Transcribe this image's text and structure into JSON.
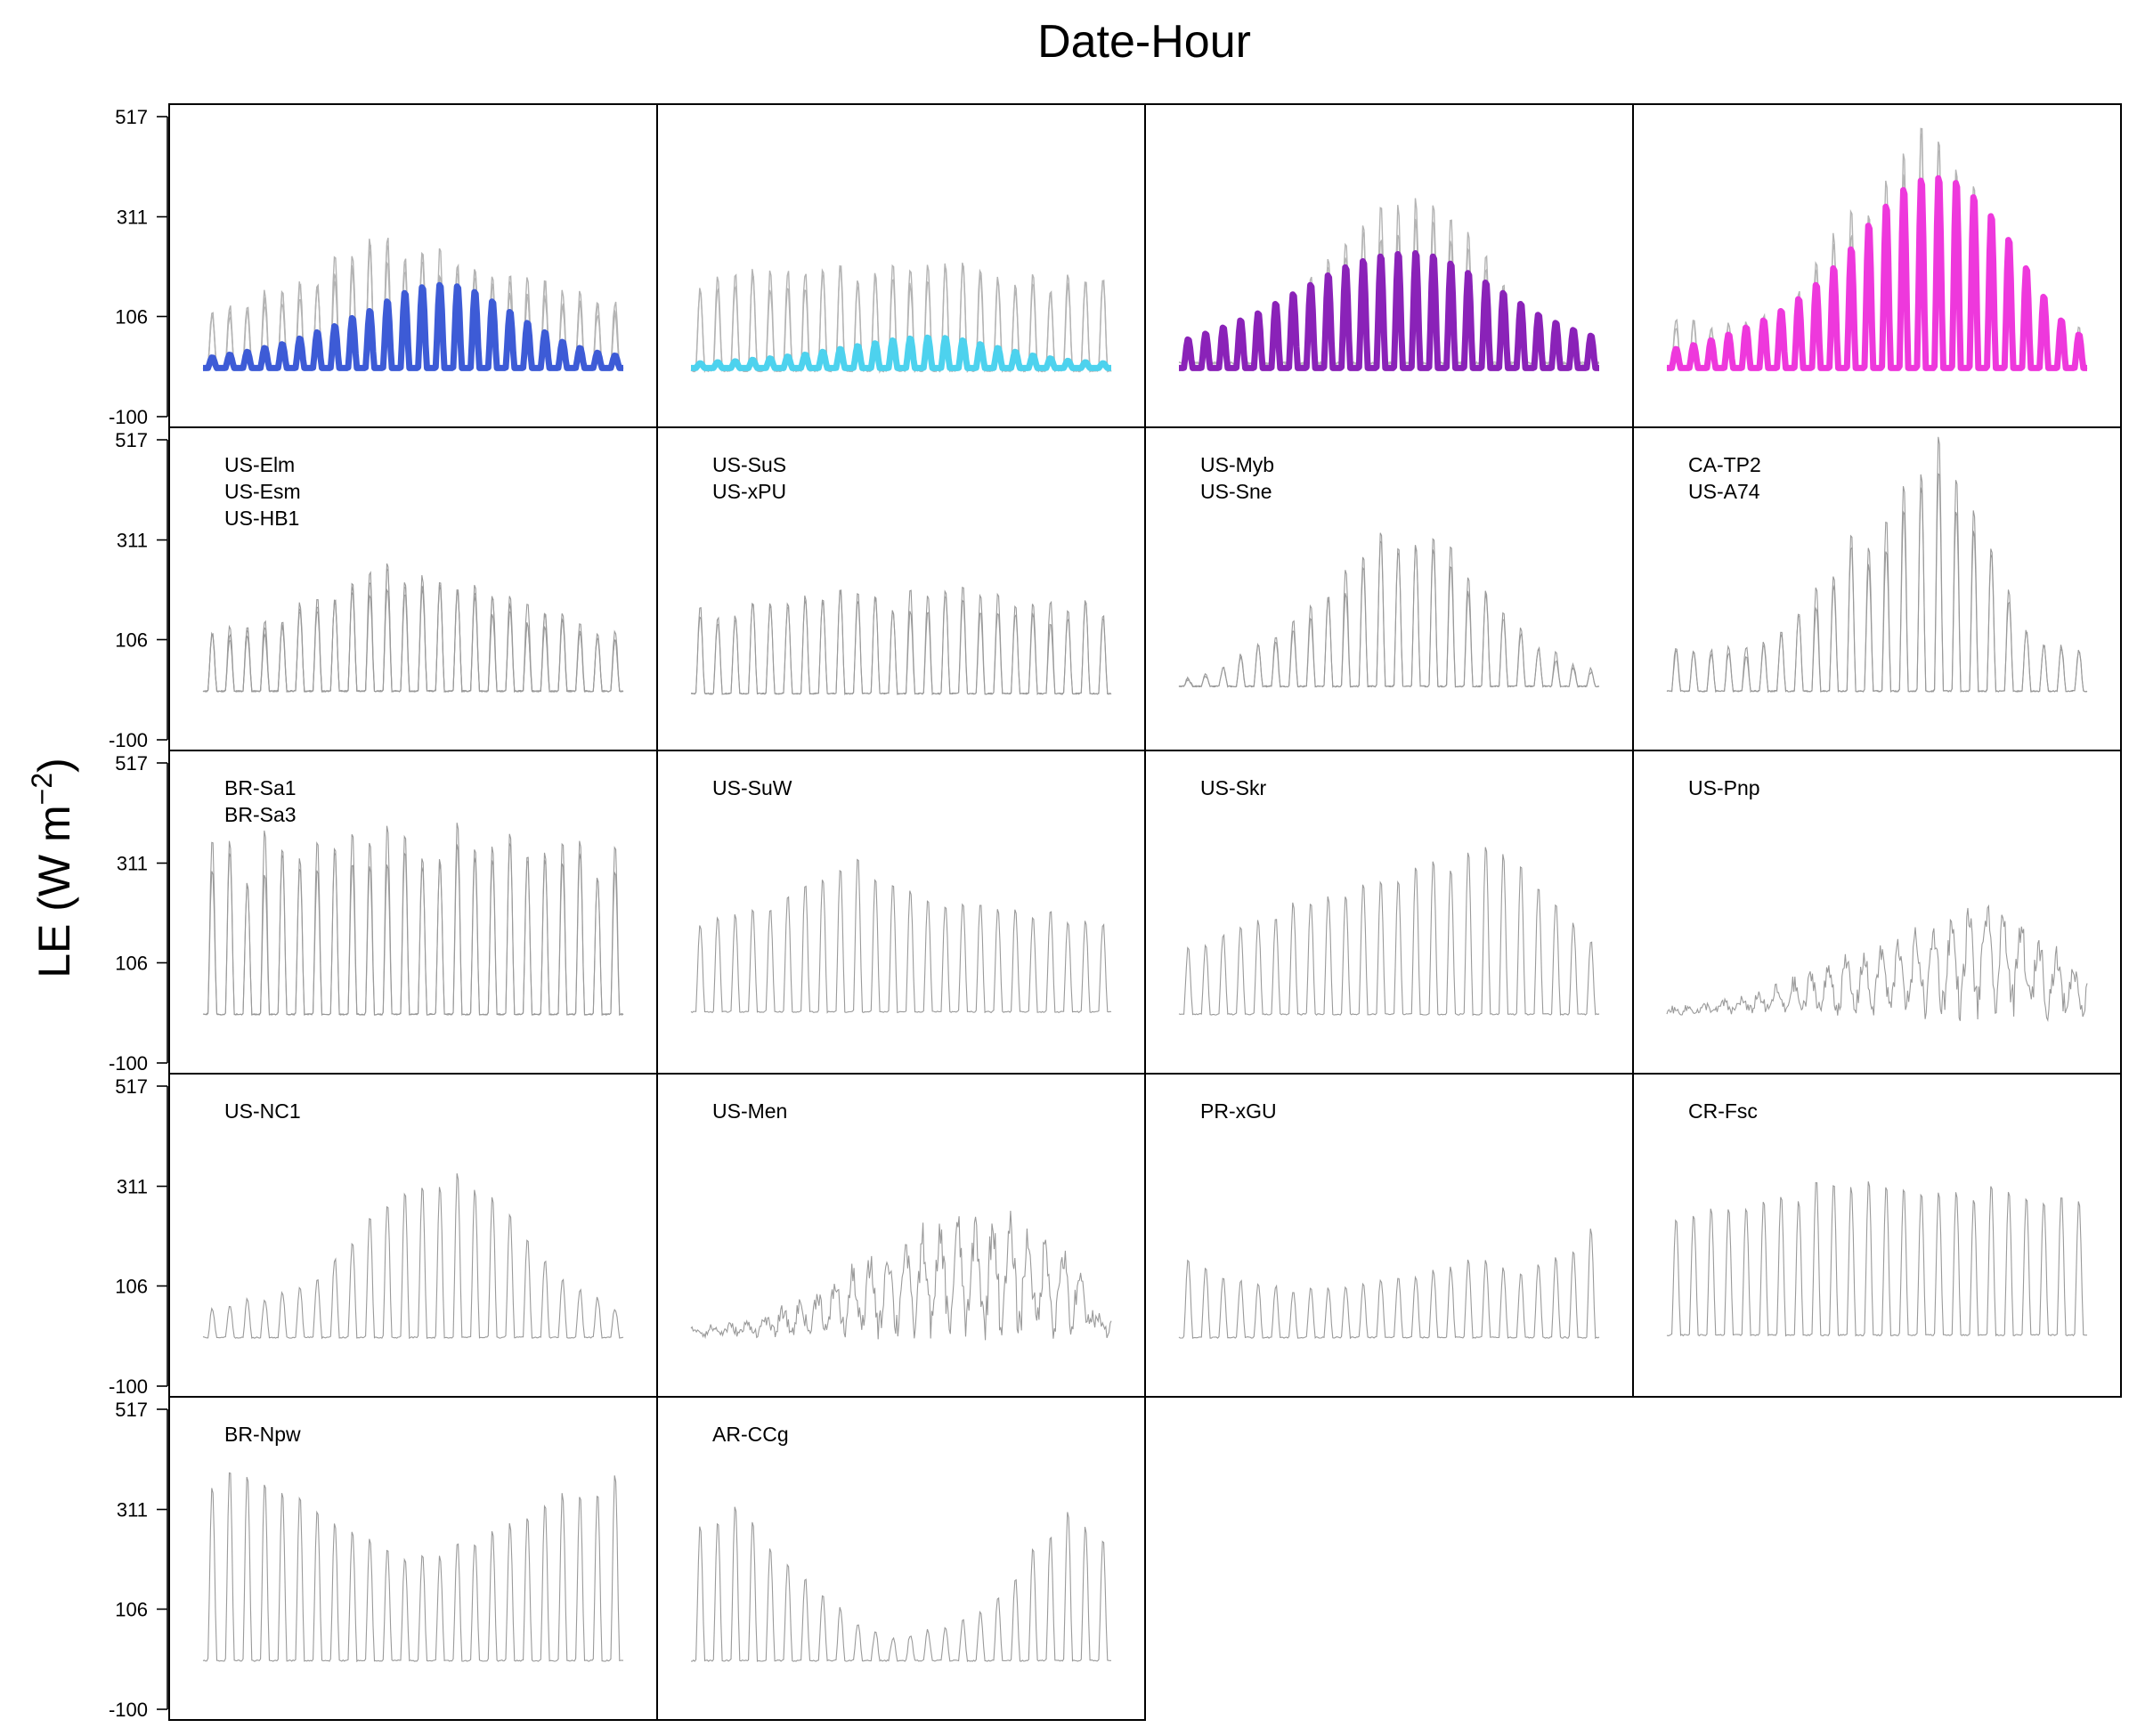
{
  "chart_data": {
    "type": "line",
    "title": "Date-Hour",
    "xlabel": "",
    "ylabel": "LE (W m",
    "ylabel_unit_exponent": "−2",
    "ylabel_close": ")",
    "ylim": [
      -100,
      517
    ],
    "yticks": [
      "517",
      "311",
      "106",
      "-100"
    ],
    "grid": false,
    "layout": {
      "rows": 5,
      "cols": 4
    },
    "x_days": 24,
    "summary_panels": [
      {
        "color": "#3d5bd6",
        "site_panel": 0,
        "peaks": [
          22,
          28,
          34,
          42,
          50,
          62,
          75,
          88,
          105,
          120,
          140,
          158,
          170,
          175,
          172,
          160,
          140,
          118,
          95,
          75,
          55,
          42,
          32,
          26
        ]
      },
      {
        "color": "#4dd2ee",
        "site_panel": 1,
        "peaks": [
          10,
          12,
          14,
          17,
          20,
          24,
          28,
          34,
          40,
          46,
          52,
          58,
          62,
          64,
          63,
          58,
          50,
          42,
          34,
          26,
          20,
          15,
          12,
          10
        ]
      },
      {
        "color": "#8a22b8",
        "site_panel": 2,
        "peaks": [
          60,
          72,
          85,
          100,
          115,
          135,
          155,
          175,
          195,
          212,
          225,
          235,
          240,
          242,
          235,
          220,
          200,
          180,
          158,
          135,
          112,
          95,
          80,
          68
        ]
      },
      {
        "color": "#ee38dc",
        "site_panel": 3,
        "peaks": [
          40,
          48,
          58,
          70,
          85,
          100,
          120,
          145,
          175,
          210,
          250,
          300,
          340,
          375,
          395,
          400,
          390,
          360,
          320,
          270,
          210,
          150,
          100,
          70
        ]
      }
    ],
    "site_panels": [
      {
        "labels": [
          "US-Elm",
          "US-Esm",
          "US-HB1"
        ],
        "style": "diurnal",
        "base": 0,
        "series_count": 3,
        "peaks": [
          110,
          120,
          130,
          140,
          150,
          170,
          190,
          210,
          225,
          240,
          245,
          230,
          220,
          215,
          205,
          200,
          190,
          180,
          170,
          160,
          150,
          140,
          130,
          120
        ]
      },
      {
        "labels": [
          "US-SuS",
          "US-xPU"
        ],
        "style": "diurnal",
        "base": -5,
        "series_count": 2,
        "peaks": [
          160,
          170,
          175,
          180,
          175,
          185,
          190,
          200,
          205,
          190,
          185,
          195,
          200,
          205,
          210,
          200,
          190,
          185,
          180,
          175,
          170,
          175,
          170,
          165
        ]
      },
      {
        "labels": [
          "US-Myb",
          "US-Sne"
        ],
        "style": "diurnal",
        "base": 10,
        "series_count": 2,
        "peaks": [
          30,
          40,
          55,
          70,
          90,
          110,
          140,
          170,
          200,
          240,
          270,
          300,
          320,
          335,
          310,
          280,
          250,
          210,
          170,
          130,
          95,
          70,
          50,
          40
        ]
      },
      {
        "labels": [
          "CA-TP2",
          "US-A74"
        ],
        "style": "diurnal",
        "base": 0,
        "series_count": 2,
        "peaks": [
          90,
          85,
          80,
          90,
          85,
          95,
          110,
          150,
          200,
          260,
          300,
          280,
          350,
          460,
          510,
          490,
          430,
          350,
          270,
          200,
          130,
          95,
          85,
          80
        ]
      },
      {
        "labels": [
          "BR-Sa1",
          "BR-Sa3"
        ],
        "style": "diurnal",
        "base": 0,
        "series_count": 2,
        "peaks": [
          340,
          350,
          330,
          345,
          355,
          340,
          350,
          360,
          345,
          350,
          365,
          370,
          360,
          375,
          390,
          385,
          380,
          370,
          365,
          355,
          345,
          340,
          335,
          330
        ]
      },
      {
        "labels": [
          "US-SuW"
        ],
        "style": "diurnal",
        "base": 5,
        "series_count": 1,
        "peaks": [
          190,
          200,
          210,
          220,
          235,
          250,
          265,
          280,
          320,
          330,
          300,
          280,
          260,
          250,
          245,
          240,
          235,
          230,
          225,
          220,
          215,
          210,
          205,
          200
        ]
      },
      {
        "labels": [
          "US-Skr"
        ],
        "style": "diurnal",
        "base": 0,
        "series_count": 1,
        "peaks": [
          140,
          150,
          160,
          175,
          190,
          210,
          225,
          240,
          250,
          260,
          270,
          280,
          290,
          300,
          310,
          320,
          330,
          350,
          340,
          310,
          280,
          240,
          200,
          160
        ]
      },
      {
        "labels": [
          "US-Pnp"
        ],
        "style": "noisy",
        "base": 5,
        "series_count": 1,
        "level": [
          5,
          8,
          12,
          18,
          25,
          35,
          45,
          58,
          72,
          85,
          98,
          110,
          122,
          135,
          148,
          160,
          175,
          190,
          205,
          185,
          165,
          140,
          110,
          85
        ]
      },
      {
        "labels": [
          "US-NC1"
        ],
        "style": "diurnal",
        "base": 0,
        "series_count": 1,
        "peaks": [
          60,
          70,
          75,
          85,
          95,
          110,
          130,
          170,
          210,
          260,
          290,
          310,
          320,
          330,
          335,
          320,
          290,
          250,
          210,
          170,
          130,
          100,
          80,
          65
        ]
      },
      {
        "labels": [
          "US-Men"
        ],
        "style": "noisy",
        "base": 8,
        "series_count": 1,
        "level": [
          10,
          12,
          15,
          20,
          30,
          45,
          60,
          80,
          100,
          120,
          140,
          160,
          175,
          190,
          200,
          210,
          215,
          220,
          210,
          195,
          180,
          160,
          110,
          35
        ]
      },
      {
        "labels": [
          "PR-xGU"
        ],
        "style": "diurnal",
        "base": 0,
        "series_count": 1,
        "peaks": [
          180,
          150,
          130,
          120,
          110,
          105,
          100,
          100,
          105,
          110,
          115,
          120,
          125,
          130,
          140,
          150,
          160,
          170,
          150,
          140,
          150,
          160,
          170,
          240
        ]
      },
      {
        "labels": [
          "CR-Fsc"
        ],
        "style": "diurnal",
        "base": 5,
        "series_count": 1,
        "peaks": [
          250,
          260,
          270,
          275,
          280,
          290,
          300,
          310,
          320,
          325,
          330,
          340,
          335,
          330,
          325,
          320,
          315,
          310,
          305,
          300,
          295,
          290,
          285,
          280
        ]
      },
      {
        "labels": [
          "BR-Npw"
        ],
        "style": "diurnal",
        "base": 0,
        "series_count": 1,
        "peaks": [
          380,
          390,
          385,
          380,
          360,
          340,
          320,
          300,
          280,
          260,
          240,
          230,
          225,
          230,
          240,
          255,
          270,
          285,
          300,
          320,
          340,
          360,
          375,
          380
        ]
      },
      {
        "labels": [
          "AR-CCg"
        ],
        "style": "diurnal",
        "base": 0,
        "series_count": 1,
        "peaks": [
          300,
          290,
          320,
          280,
          240,
          200,
          170,
          140,
          110,
          80,
          60,
          50,
          55,
          60,
          70,
          90,
          110,
          140,
          180,
          230,
          270,
          300,
          290,
          260
        ]
      }
    ]
  }
}
